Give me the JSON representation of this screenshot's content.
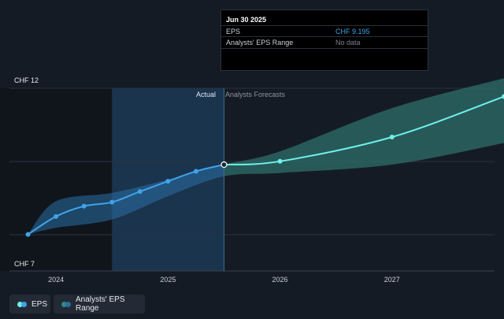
{
  "tooltip": {
    "date": "Jun 30 2025",
    "rows": [
      {
        "label": "EPS",
        "value": "CHF 9.195"
      },
      {
        "label": "Analysts' EPS Range",
        "value": "No data"
      }
    ]
  },
  "labels": {
    "actual": "Actual",
    "forecast": "Analysts Forecasts"
  },
  "legend": [
    {
      "label": "EPS"
    },
    {
      "label": "Analysts' EPS Range"
    }
  ],
  "colors": {
    "background": "#151b24",
    "eps_line": "#3fa3ea",
    "forecast_line": "#6ff0ea",
    "range_fill": "#2d6e6a",
    "highlight": "#1c3e5c",
    "tooltip_value": "#3fa3ea",
    "tooltip_nodata": "#7a818b"
  },
  "chart_data": {
    "type": "line",
    "y_axis_labels": [
      "CHF 12",
      "CHF 7"
    ],
    "ylim": [
      7,
      12
    ],
    "x_tick_labels": [
      "2024",
      "2025",
      "2026",
      "2027"
    ],
    "x_ticks": [
      2024.0,
      2025.0,
      2026.0,
      2027.0
    ],
    "xlim": [
      2023.5,
      2028.0
    ],
    "actual_until": 2025.5,
    "highlight_from": 2024.5,
    "series": [
      {
        "name": "EPS",
        "x": [
          2023.75,
          2024.0,
          2024.25,
          2024.5,
          2024.75,
          2025.0,
          2025.25,
          2025.5
        ],
        "y": [
          7.6,
          8.14,
          8.45,
          8.57,
          8.89,
          9.2,
          9.5,
          9.7
        ]
      },
      {
        "name": "EPS Forecast",
        "x": [
          2025.5,
          2026.0,
          2027.0,
          2028.0
        ],
        "y": [
          9.7,
          9.8,
          10.53,
          11.75
        ]
      }
    ],
    "range": {
      "name": "Analysts' EPS Range",
      "x": [
        2023.75,
        2024.0,
        2024.5,
        2025.0,
        2025.5,
        2026.0,
        2027.0,
        2028.0
      ],
      "low": [
        7.6,
        7.8,
        8.05,
        8.75,
        9.35,
        9.45,
        9.7,
        10.35
      ],
      "high": [
        7.6,
        8.6,
        8.85,
        9.25,
        9.7,
        10.1,
        11.4,
        12.3
      ]
    }
  }
}
